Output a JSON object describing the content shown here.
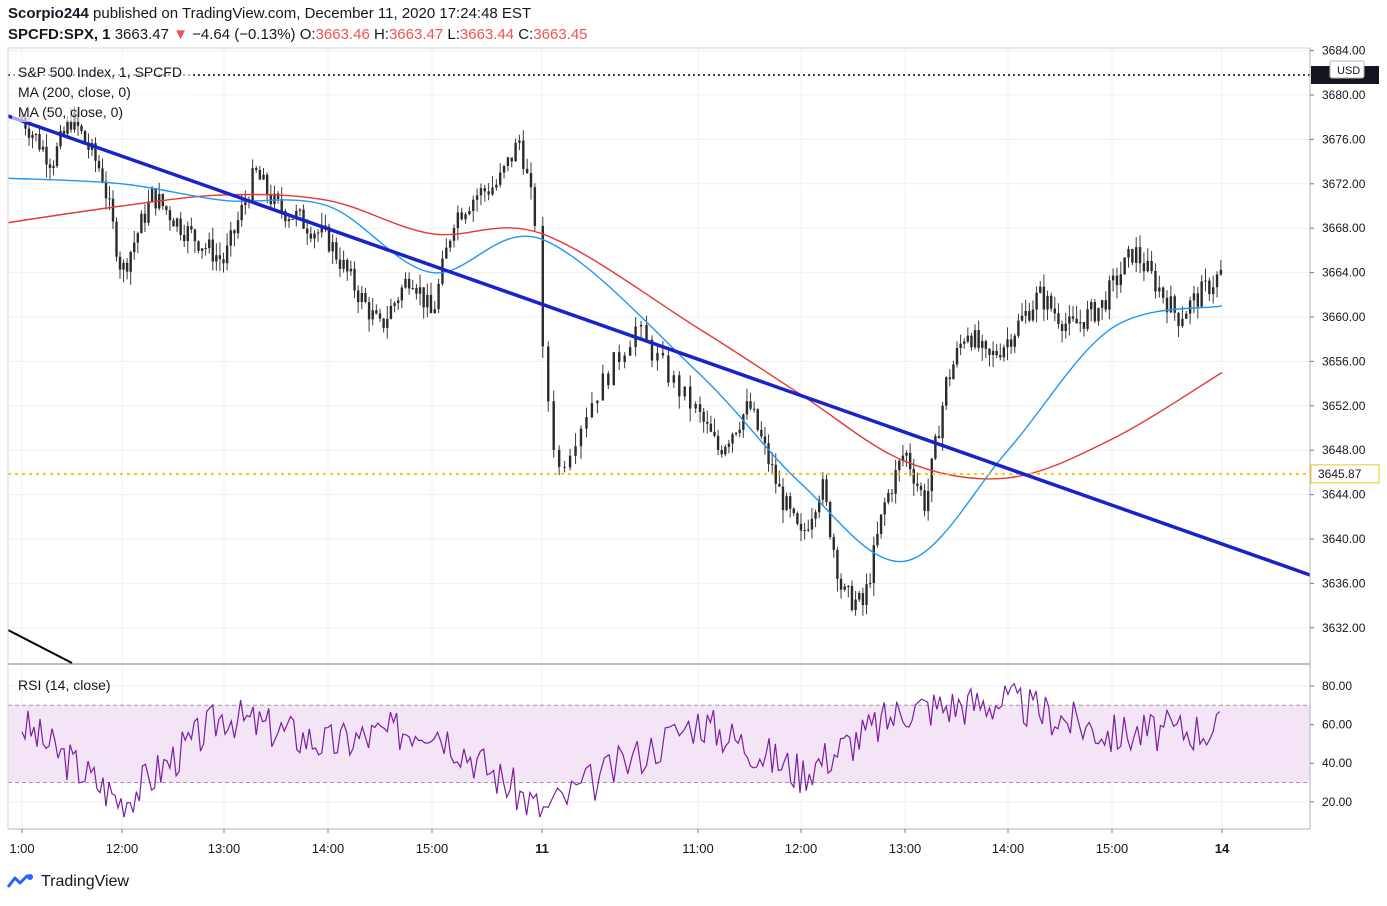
{
  "header": {
    "publisher": "Scorpio244",
    "published_text": "published on TradingView.com, December 11, 2020 17:24:48 EST",
    "symbol": "SPCFD:SPX, 1",
    "last": "3663.47",
    "arrow": "▼",
    "change": "−4.64 (−0.13%)",
    "o_label": "O:",
    "o_value": "3663.46",
    "h_label": "H:",
    "h_value": "3663.47",
    "l_label": "L:",
    "l_value": "3663.44",
    "c_label": "C:",
    "c_value": "3663.45"
  },
  "legend": {
    "title": "S&P 500 Index, 1, SPCFD",
    "ma200": "MA (200, close, 0)",
    "ma50": "MA (50, close, 0)",
    "rsi": "RSI (14, close)"
  },
  "price_axis": {
    "currency": "USD",
    "ticks": [
      "3684.00",
      "3680.00",
      "3676.00",
      "3672.00",
      "3668.00",
      "3664.00",
      "3660.00",
      "3656.00",
      "3652.00",
      "3648.00",
      "3644.00",
      "3640.00",
      "3636.00",
      "3632.00"
    ],
    "marker_label": "3645.87"
  },
  "rsi_axis": {
    "ticks": [
      "80.00",
      "60.00",
      "40.00",
      "20.00"
    ]
  },
  "time_axis": {
    "ticks": [
      "1:00",
      "12:00",
      "13:00",
      "14:00",
      "15:00",
      "11",
      "11:00",
      "12:00",
      "13:00",
      "14:00",
      "15:00",
      "14"
    ]
  },
  "brand": {
    "name": "TradingView"
  },
  "colors": {
    "up": "#26a69a",
    "down": "#ef5350",
    "candle": "#1e1e1e",
    "ma200": "#e53935",
    "ma50": "#2196f3",
    "trendline": "#1a23c9",
    "horizontal_level": "#f5c518",
    "rsi_line": "#7b1fa2",
    "rsi_band": "#f3e5f5"
  },
  "chart_data": [
    {
      "type": "line",
      "title": "S&P 500 Index, 1, SPCFD",
      "ylabel": "",
      "ylim": [
        3630,
        3685
      ],
      "x": [
        "1:00",
        "12:00",
        "13:00",
        "14:00",
        "15:00",
        "11",
        "11:00",
        "12:00",
        "13:00",
        "14:00",
        "15:00",
        "14"
      ],
      "series": [
        {
          "name": "MA (50, close, 0)",
          "values": [
            3672.5,
            3672.0,
            3670.5,
            3670.0,
            3664.0,
            3667.0,
            3655.0,
            3645.0,
            3638.0,
            3648.0,
            3659.0,
            3661.0
          ]
        },
        {
          "name": "MA (200, close, 0)",
          "values": [
            3668.5,
            3670.0,
            3671.0,
            3670.5,
            3667.5,
            3667.5,
            3659.0,
            3653.0,
            3647.0,
            3645.5,
            3649.0,
            3655.0
          ]
        }
      ],
      "close_path": {
        "x": [
          0,
          0.3,
          0.5,
          0.8,
          1.0,
          1.3,
          1.6,
          2.0,
          2.3,
          2.5,
          2.7,
          3.0,
          3.3,
          3.5,
          3.8,
          4.0,
          4.2,
          4.4,
          4.6,
          4.8,
          4.95,
          5.0,
          5.1,
          5.3,
          5.6,
          5.9,
          6.2,
          6.5,
          6.8,
          7.0,
          7.2,
          7.4,
          7.6,
          7.8,
          8.0,
          8.2,
          8.4,
          8.6,
          8.8,
          9.0,
          9.3,
          9.6,
          9.9,
          10.2,
          10.4,
          10.6,
          10.8,
          11.0
        ],
        "close": [
          3678,
          3674,
          3678,
          3673,
          3664,
          3671,
          3668,
          3665,
          3673,
          3670,
          3669,
          3667,
          3662,
          3659,
          3664,
          3660,
          3669,
          3671,
          3672,
          3676,
          3668,
          3657,
          3646,
          3652,
          3659,
          3653,
          3648,
          3652,
          3644,
          3640,
          3645,
          3635,
          3634,
          3643,
          3648,
          3643,
          3654,
          3659,
          3656,
          3658,
          3662,
          3659,
          3661,
          3666,
          3663,
          3660,
          3662,
          3664
        ]
      },
      "annotations": [
        "horizontal level 3645.87",
        "descending trendline"
      ]
    },
    {
      "type": "line",
      "title": "RSI (14, close)",
      "ylim": [
        10,
        85
      ],
      "bands": [
        30,
        70
      ],
      "x": [
        "1:00",
        "12:00",
        "13:00",
        "14:00",
        "15:00",
        "11",
        "11:00",
        "12:00",
        "13:00",
        "14:00",
        "15:00",
        "14"
      ],
      "series": [
        {
          "name": "RSI (14, close)",
          "values": [
            60,
            20,
            65,
            50,
            60,
            15,
            62,
            35,
            68,
            72,
            55,
            58
          ]
        }
      ]
    }
  ]
}
